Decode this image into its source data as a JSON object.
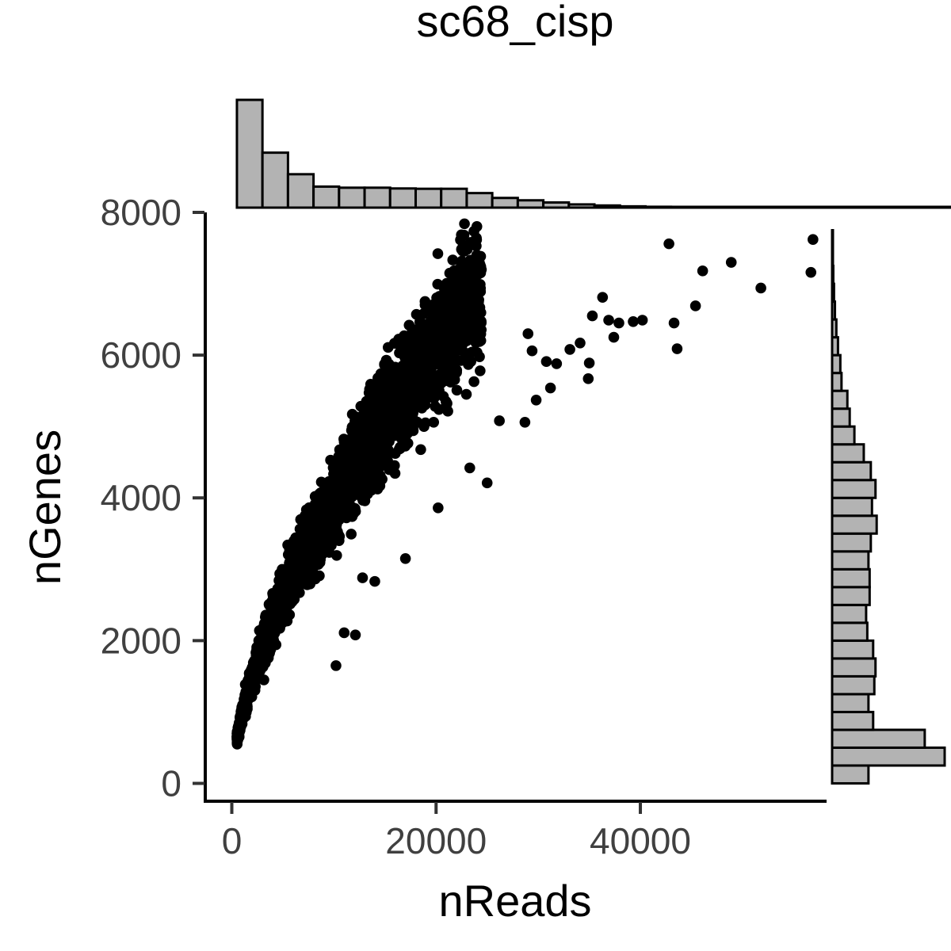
{
  "chart_data": {
    "type": "scatter",
    "title": "sc68_cisp",
    "xlabel": "nReads",
    "ylabel": "nGenes",
    "xlim": [
      -2600,
      58000
    ],
    "ylim": [
      -250,
      8000
    ],
    "xticks": [
      0,
      20000,
      40000
    ],
    "yticks": [
      0,
      2000,
      4000,
      6000,
      8000
    ],
    "tick_labels_x": [
      "0",
      "20000",
      "40000"
    ],
    "tick_labels_y": [
      "0",
      "2000",
      "4000",
      "6000",
      "8000"
    ],
    "grid": false,
    "legend": "none",
    "point_color": "#000000",
    "histogram_fill": "#b3b3b3",
    "trend": {
      "a": 13.2,
      "b": 0.62,
      "note_on_points": [
        "dense band of several thousand cells from ~500 to ~25000 reads following nGenes ≈ 13.2·nReads^0.62"
      ]
    },
    "outliers": [
      {
        "x": 42800,
        "y": 7560
      },
      {
        "x": 56900,
        "y": 7620
      },
      {
        "x": 56700,
        "y": 7160
      },
      {
        "x": 46100,
        "y": 7180
      },
      {
        "x": 48900,
        "y": 7300
      },
      {
        "x": 51800,
        "y": 6940
      },
      {
        "x": 45400,
        "y": 6690
      },
      {
        "x": 43300,
        "y": 6450
      },
      {
        "x": 43600,
        "y": 6090
      },
      {
        "x": 36300,
        "y": 6810
      },
      {
        "x": 36900,
        "y": 6490
      },
      {
        "x": 37900,
        "y": 6450
      },
      {
        "x": 39300,
        "y": 6470
      },
      {
        "x": 40200,
        "y": 6490
      },
      {
        "x": 37400,
        "y": 6250
      },
      {
        "x": 35300,
        "y": 6550
      },
      {
        "x": 35000,
        "y": 5890
      },
      {
        "x": 34900,
        "y": 5670
      },
      {
        "x": 34100,
        "y": 6170
      },
      {
        "x": 33100,
        "y": 6080
      },
      {
        "x": 31800,
        "y": 5880
      },
      {
        "x": 30800,
        "y": 5910
      },
      {
        "x": 29000,
        "y": 6300
      },
      {
        "x": 29400,
        "y": 6060
      },
      {
        "x": 31200,
        "y": 5540
      },
      {
        "x": 29800,
        "y": 5370
      },
      {
        "x": 28700,
        "y": 5060
      },
      {
        "x": 26200,
        "y": 5080
      },
      {
        "x": 25000,
        "y": 4210
      },
      {
        "x": 17000,
        "y": 3150
      },
      {
        "x": 14000,
        "y": 2830
      },
      {
        "x": 12800,
        "y": 2880
      },
      {
        "x": 11000,
        "y": 2110
      },
      {
        "x": 12100,
        "y": 2080
      },
      {
        "x": 10200,
        "y": 1650
      },
      {
        "x": 23300,
        "y": 4420
      },
      {
        "x": 20200,
        "y": 3860
      }
    ],
    "x_hist": {
      "bin_width": 2500,
      "first_bin_start": 500,
      "counts": [
        1000,
        510,
        310,
        195,
        185,
        185,
        178,
        175,
        175,
        135,
        90,
        68,
        48,
        30,
        20,
        12,
        8,
        6,
        4,
        3,
        2,
        2,
        1,
        1,
        1,
        1,
        1,
        1,
        1
      ],
      "bar_heights": "relative counts; tallest bin = 1000"
    },
    "y_hist": {
      "bin_start": 0,
      "bin_width": 250,
      "counts": [
        155,
        480,
        395,
        175,
        155,
        180,
        185,
        175,
        150,
        145,
        160,
        160,
        155,
        165,
        190,
        170,
        185,
        165,
        135,
        95,
        75,
        65,
        40,
        35,
        25,
        18,
        12,
        8,
        5,
        3,
        3
      ]
    }
  }
}
